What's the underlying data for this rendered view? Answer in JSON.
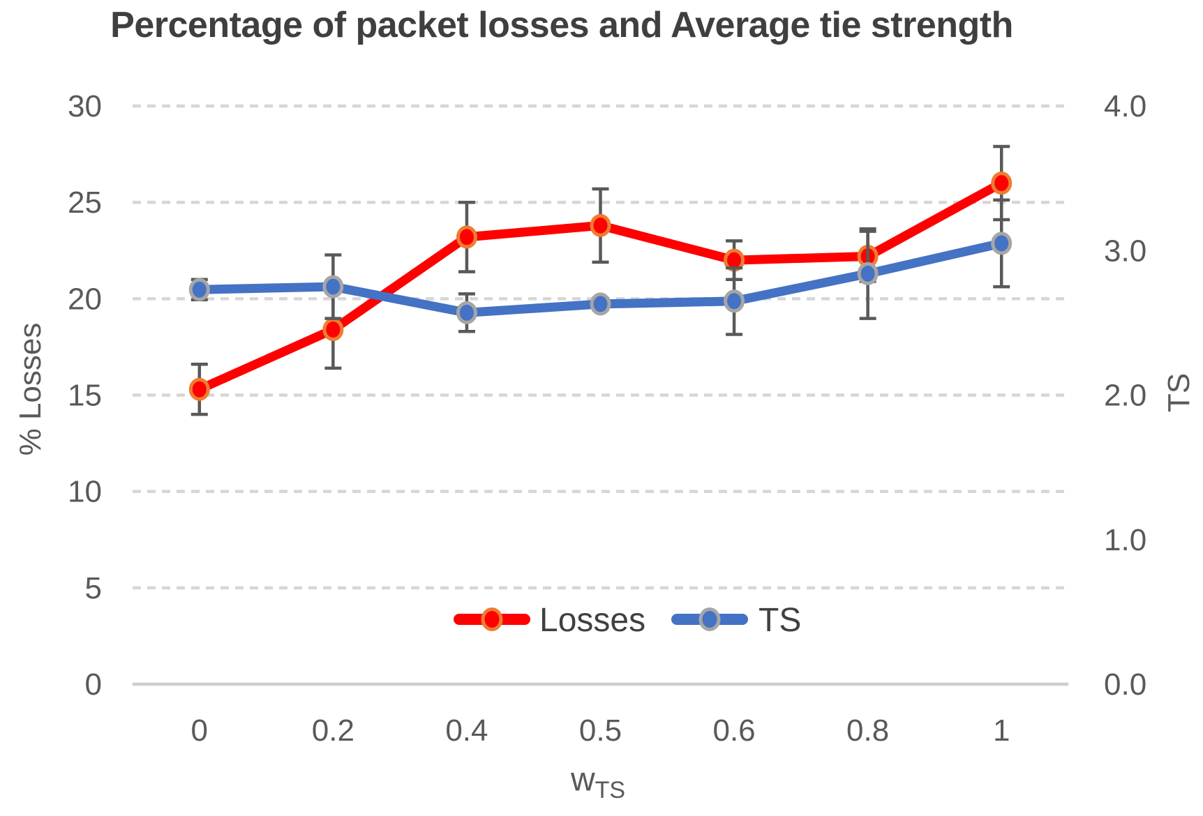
{
  "chart_data": {
    "type": "line",
    "title": "Percentage of packet losses and Average tie strength",
    "xlabel": {
      "base": "w",
      "sub": "TS"
    },
    "ylabel_left": "% Losses",
    "ylabel_right": "TS",
    "categories": [
      "0",
      "0.2",
      "0.4",
      "0.5",
      "0.6",
      "0.8",
      "1"
    ],
    "axes": {
      "left": {
        "title": "% Losses",
        "min": 0,
        "max": 30,
        "ticks": [
          0,
          5,
          10,
          15,
          20,
          25,
          30
        ]
      },
      "right": {
        "title": "TS",
        "min": 0,
        "max": 4,
        "tick_labels": [
          "0.0",
          "1.0",
          "2.0",
          "3.0",
          "4.0"
        ]
      }
    },
    "grid": {
      "horizontal_dashed": true
    },
    "legend": {
      "position": "bottom-center-inside",
      "items": [
        "Losses",
        "TS"
      ]
    },
    "series": [
      {
        "name": "Losses",
        "axis": "left",
        "line_color": "#FE0000",
        "marker_fill": "#FE0000",
        "marker_ring": "#ED7D31",
        "values": [
          15.3,
          18.4,
          23.2,
          23.8,
          22.0,
          22.2,
          26.0
        ],
        "error": [
          1.3,
          2.0,
          1.8,
          1.9,
          1.0,
          1.3,
          1.9
        ]
      },
      {
        "name": "TS",
        "axis": "right",
        "line_color": "#4472C4",
        "marker_fill": "#4472C4",
        "marker_ring": "#A6A6A6",
        "values": [
          2.73,
          2.75,
          2.57,
          2.63,
          2.65,
          2.84,
          3.05
        ],
        "error": [
          0.07,
          0.22,
          0.13,
          0.04,
          0.23,
          0.31,
          0.3
        ]
      }
    ],
    "colors": {
      "error_bar": "#595959",
      "gridline": "#D6D6D6",
      "axis_line": "#CFCDCD",
      "tick_text": "#595959",
      "title_text": "#3F3F3F",
      "legend_text": "#404040"
    }
  }
}
